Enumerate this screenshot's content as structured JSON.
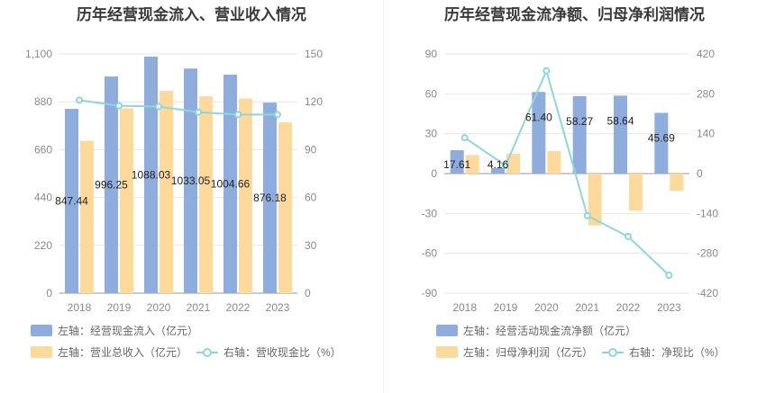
{
  "colors": {
    "blue": "#8eacdc",
    "orange": "#fdd99c",
    "teal": "#8fd6dc",
    "grid": "#e6e6e6",
    "axis": "#8a8a8a"
  },
  "chart_data": [
    {
      "type": "bar",
      "title": "历年经营现金流入、营业收入情况",
      "categories": [
        "2018",
        "2019",
        "2020",
        "2021",
        "2022",
        "2023"
      ],
      "series": [
        {
          "name": "左轴：经营现金流入（亿元）",
          "axis": "left",
          "kind": "bar",
          "values": [
            847.44,
            996.25,
            1088.03,
            1033.05,
            1004.66,
            876.18
          ],
          "labels": [
            "847.44",
            "996.25",
            "1088.03",
            "1033.05",
            "1004.66",
            "876.18"
          ]
        },
        {
          "name": "左轴：营业总收入（亿元）",
          "axis": "left",
          "kind": "bar",
          "values": [
            700,
            850,
            930,
            905,
            895,
            785
          ]
        },
        {
          "name": "右轴：营收现金比（%）",
          "axis": "right",
          "kind": "line",
          "values": [
            121,
            117.5,
            117,
            113.5,
            112,
            112
          ]
        }
      ],
      "left_axis": {
        "ylim": [
          0,
          1100
        ],
        "ticks": [
          "0",
          "220",
          "440",
          "660",
          "880",
          "1,100"
        ]
      },
      "right_axis": {
        "ylim": [
          0,
          150
        ],
        "ticks": [
          "0",
          "30",
          "60",
          "90",
          "120",
          "150"
        ]
      }
    },
    {
      "type": "bar",
      "title": "历年经营现金流净额、归母净利润情况",
      "categories": [
        "2018",
        "2019",
        "2020",
        "2021",
        "2022",
        "2023"
      ],
      "series": [
        {
          "name": "左轴：经营活动现金流净额（亿元）",
          "axis": "left",
          "kind": "bar",
          "values": [
            17.61,
            4.16,
            61.4,
            58.27,
            58.64,
            45.69
          ],
          "labels": [
            "17.61",
            "4.16",
            "61.40",
            "58.27",
            "58.64",
            "45.69"
          ]
        },
        {
          "name": "左轴：归母净利润（亿元）",
          "axis": "left",
          "kind": "bar",
          "values": [
            14,
            15,
            17,
            -39,
            -28,
            -13
          ]
        },
        {
          "name": "右轴：净现比（%）",
          "axis": "right",
          "kind": "line",
          "values": [
            126,
            28,
            361,
            -148,
            -221,
            -357
          ]
        }
      ],
      "left_axis": {
        "ylim": [
          -90,
          90
        ],
        "ticks": [
          "-90",
          "-60",
          "-30",
          "0",
          "30",
          "60",
          "90"
        ]
      },
      "right_axis": {
        "ylim": [
          -420,
          420
        ],
        "ticks": [
          "-420",
          "-280",
          "-140",
          "0",
          "140",
          "280",
          "420"
        ]
      }
    }
  ]
}
